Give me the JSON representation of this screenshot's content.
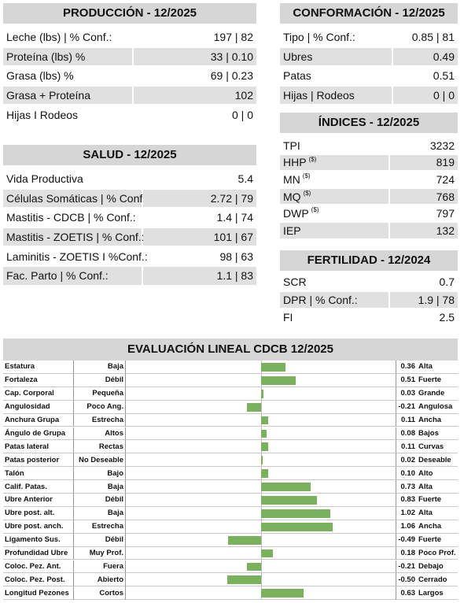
{
  "produccion": {
    "title": "PRODUCCIÓN - 12/2025",
    "rows": [
      {
        "label": "Leche (lbs) | % Conf.:",
        "value": "197 | 82"
      },
      {
        "label": "Proteína (lbs) %",
        "value": "33 | 0.10"
      },
      {
        "label": "Grasa (lbs) %",
        "value": "69 | 0.23"
      },
      {
        "label": "Grasa + Proteína",
        "value": "102"
      },
      {
        "label": "Hijas I Rodeos",
        "value": "0 | 0"
      }
    ]
  },
  "salud": {
    "title": "SALUD - 12/2025",
    "rows": [
      {
        "label": "Vida Productiva",
        "value": "5.4"
      },
      {
        "label": "Células Somáticas | % Conf.:",
        "value": "2.72 | 79"
      },
      {
        "label": "Mastitis - CDCB | % Conf.:",
        "value": "1.4 | 74"
      },
      {
        "label": "Mastitis - ZOETIS | % Conf.:",
        "value": "101 | 67"
      },
      {
        "label": "Laminitis - ZOETIS I %Conf.:",
        "value": "98 | 63"
      },
      {
        "label": "Fac. Parto | % Conf.:",
        "value": "1.1 | 83"
      }
    ]
  },
  "conformacion": {
    "title": "CONFORMACIÓN - 12/2025",
    "rows": [
      {
        "label": "Tipo | % Conf.:",
        "value": "0.85 | 81"
      },
      {
        "label": "Ubres",
        "value": "0.49"
      },
      {
        "label": "Patas",
        "value": "0.51"
      },
      {
        "label": "Hijas | Rodeos",
        "value": "0 | 0"
      }
    ]
  },
  "indices": {
    "title": "ÍNDICES - 12/2025",
    "rows": [
      {
        "label": "TPI",
        "value": "3232"
      },
      {
        "label": "HHP",
        "note": "($)",
        "value": "819"
      },
      {
        "label": "MN",
        "note": "($)",
        "value": "724"
      },
      {
        "label": "MQ",
        "note": "($)",
        "value": "768"
      },
      {
        "label": "DWP",
        "note": "($)",
        "value": "797"
      },
      {
        "label": "IEP",
        "value": "132"
      }
    ]
  },
  "fertilidad": {
    "title": "FERTILIDAD - 12/2024",
    "rows": [
      {
        "label": "SCR",
        "value": "0.7"
      },
      {
        "label": "DPR | % Conf.:",
        "value": "1.9 | 78"
      },
      {
        "label": "FI",
        "value": "2.5"
      }
    ]
  },
  "lineal": {
    "title": "EVALUACIÓN LINEAL CDCB 12/2025",
    "traits": [
      "Estatura",
      "Fortaleza",
      "Cap. Corporal",
      "Angulosidad",
      "Anchura Grupa",
      "Ángulo de Grupa",
      "Patas lateral",
      "Patas posterior",
      "Talón",
      "Calif. Patas.",
      "Ubre Anterior",
      "Ubre post. alt.",
      "Ubre post. anch.",
      "Ligamento Sus.",
      "Profundidad Ubre",
      "Coloc. Pez. Ant.",
      "Coloc. Pez. Post.",
      "Longitud Pezones"
    ],
    "low": [
      "Baja",
      "Débil",
      "Pequeña",
      "Poco Ang.",
      "Estrecha",
      "Altos",
      "Rectas",
      "No Deseable",
      "Bajo",
      "Baja",
      "Débil",
      "Baja",
      "Estrecha",
      "Débil",
      "Muy Prof.",
      "Fuera",
      "Abierto",
      "Cortos"
    ],
    "high": [
      "Alta",
      "Fuerte",
      "Grande",
      "Angulosa",
      "Ancha",
      "Bajos",
      "Curvas",
      "Deseable",
      "Alto",
      "Alta",
      "Fuerte",
      "Alta",
      "Ancha",
      "Fuerte",
      "Poco Prof.",
      "Debajo",
      "Cerrado",
      "Largos"
    ],
    "values": [
      0.36,
      0.51,
      0.03,
      -0.21,
      0.11,
      0.08,
      0.11,
      0.02,
      0.1,
      0.73,
      0.83,
      1.02,
      1.06,
      -0.49,
      0.18,
      -0.21,
      -0.5,
      0.63
    ],
    "value_labels": [
      "0.36",
      "0.51",
      "0.03",
      "-0.21",
      "0.11",
      "0.08",
      "0.11",
      "0.02",
      "0.10",
      "0.73",
      "0.83",
      "1.02",
      "1.06",
      "-0.49",
      "0.18",
      "-0.21",
      "-0.50",
      "0.63"
    ]
  }
}
